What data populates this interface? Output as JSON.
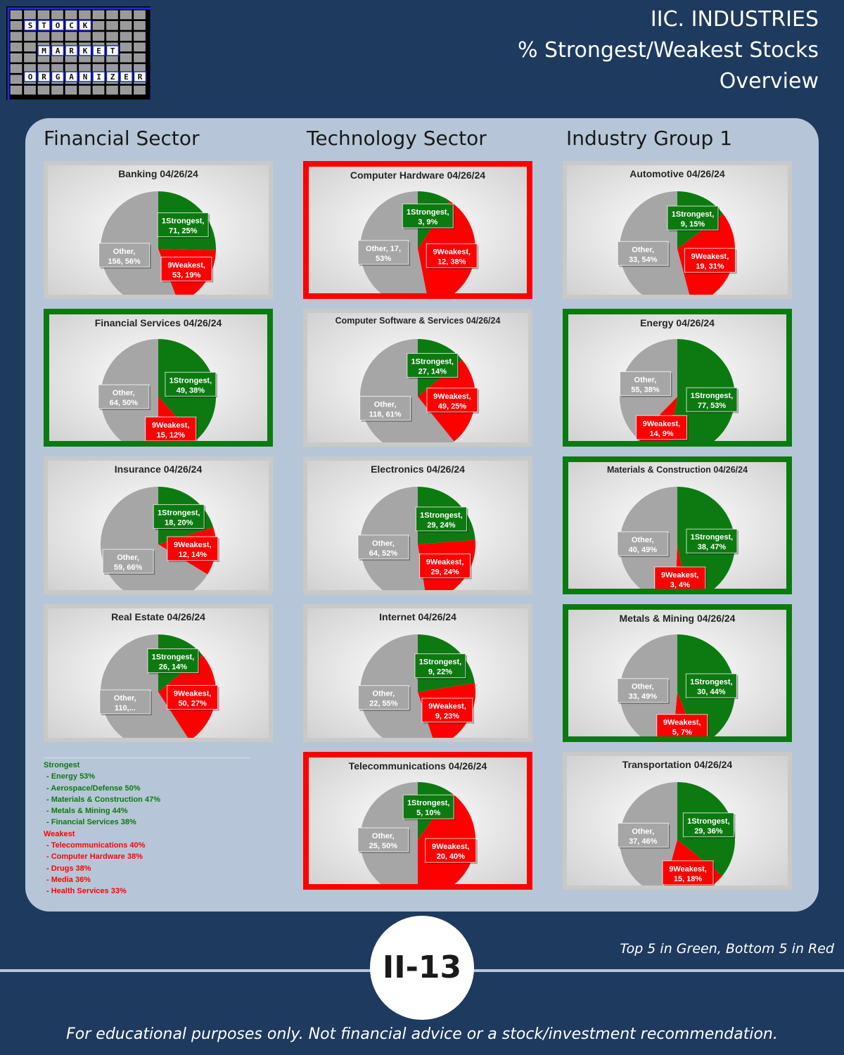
{
  "logo": {
    "rows": [
      [
        "S",
        "T",
        "O",
        "C",
        "K"
      ],
      [
        "M",
        "A",
        "R",
        "K",
        "E",
        "T"
      ],
      [
        "O",
        "R",
        "G",
        "A",
        "N",
        "I",
        "Z",
        "E",
        "R"
      ]
    ]
  },
  "header": {
    "line1": "IIC. INDUSTRIES",
    "line2": "% Strongest/Weakest Stocks",
    "line3": "Overview"
  },
  "sections": [
    "Financial Sector",
    "Technology Sector",
    "Industry Group 1"
  ],
  "colors": {
    "strongest": "#0c7a10",
    "weakest": "#ff0000",
    "other": "#a6a6a6"
  },
  "chart_data": [
    {
      "type": "pie",
      "title": "Banking 04/26/24",
      "column": 0,
      "row": 0,
      "highlight": "none",
      "slices": [
        {
          "name": "1Strongest",
          "line1": "1Strongest,",
          "line2": "71, 25%",
          "count": 71,
          "pct": 25
        },
        {
          "name": "9Weakest",
          "line1": "9Weakest,",
          "line2": "53, 19%",
          "count": 53,
          "pct": 19
        },
        {
          "name": "Other",
          "line1": "Other,",
          "line2": "156, 56%",
          "count": 156,
          "pct": 56
        }
      ]
    },
    {
      "type": "pie",
      "title": "Financial Services 04/26/24",
      "column": 0,
      "row": 1,
      "highlight": "green",
      "slices": [
        {
          "name": "1Strongest",
          "line1": "1Strongest,",
          "line2": "49, 38%",
          "count": 49,
          "pct": 38
        },
        {
          "name": "9Weakest",
          "line1": "9Weakest,",
          "line2": "15, 12%",
          "count": 15,
          "pct": 12
        },
        {
          "name": "Other",
          "line1": "Other,",
          "line2": "64, 50%",
          "count": 64,
          "pct": 50
        }
      ]
    },
    {
      "type": "pie",
      "title": "Insurance 04/26/24",
      "column": 0,
      "row": 2,
      "highlight": "none",
      "slices": [
        {
          "name": "1Strongest",
          "line1": "1Strongest,",
          "line2": "18, 20%",
          "count": 18,
          "pct": 20
        },
        {
          "name": "9Weakest",
          "line1": "9Weakest,",
          "line2": "12, 14%",
          "count": 12,
          "pct": 14
        },
        {
          "name": "Other",
          "line1": "Other,",
          "line2": "59, 66%",
          "count": 59,
          "pct": 66
        }
      ]
    },
    {
      "type": "pie",
      "title": "Real Estate 04/26/24",
      "column": 0,
      "row": 3,
      "highlight": "none",
      "slices": [
        {
          "name": "1Strongest",
          "line1": "1Strongest,",
          "line2": "26, 14%",
          "count": 26,
          "pct": 14
        },
        {
          "name": "9Weakest",
          "line1": "9Weakest,",
          "line2": "50, 27%",
          "count": 50,
          "pct": 27
        },
        {
          "name": "Other",
          "line1": "Other,",
          "line2": "110,...",
          "count": 110,
          "pct": 59
        }
      ]
    },
    {
      "type": "pie",
      "title": "Computer Hardware 04/26/24",
      "column": 1,
      "row": 0,
      "highlight": "red",
      "slices": [
        {
          "name": "1Strongest",
          "line1": "1Strongest,",
          "line2": "3, 9%",
          "count": 3,
          "pct": 9
        },
        {
          "name": "9Weakest",
          "line1": "9Weakest,",
          "line2": "12, 38%",
          "count": 12,
          "pct": 38
        },
        {
          "name": "Other",
          "line1": "Other, 17,",
          "line2": "53%",
          "count": 17,
          "pct": 53
        }
      ]
    },
    {
      "type": "pie",
      "title": "Computer Software & Services 04/26/24",
      "column": 1,
      "row": 1,
      "highlight": "none",
      "slices": [
        {
          "name": "1Strongest",
          "line1": "1Strongest,",
          "line2": "27, 14%",
          "count": 27,
          "pct": 14
        },
        {
          "name": "9Weakest",
          "line1": "9Weakest,",
          "line2": "49, 25%",
          "count": 49,
          "pct": 25
        },
        {
          "name": "Other",
          "line1": "Other,",
          "line2": "118, 61%",
          "count": 118,
          "pct": 61
        }
      ]
    },
    {
      "type": "pie",
      "title": "Electronics 04/26/24",
      "column": 1,
      "row": 2,
      "highlight": "none",
      "slices": [
        {
          "name": "1Strongest",
          "line1": "1Strongest,",
          "line2": "29, 24%",
          "count": 29,
          "pct": 24
        },
        {
          "name": "9Weakest",
          "line1": "9Weakest,",
          "line2": "29, 24%",
          "count": 29,
          "pct": 24
        },
        {
          "name": "Other",
          "line1": "Other,",
          "line2": "64, 52%",
          "count": 64,
          "pct": 52
        }
      ]
    },
    {
      "type": "pie",
      "title": "Internet 04/26/24",
      "column": 1,
      "row": 3,
      "highlight": "none",
      "slices": [
        {
          "name": "1Strongest",
          "line1": "1Strongest,",
          "line2": "9, 22%",
          "count": 9,
          "pct": 22
        },
        {
          "name": "9Weakest",
          "line1": "9Weakest,",
          "line2": "9, 23%",
          "count": 9,
          "pct": 23
        },
        {
          "name": "Other",
          "line1": "Other,",
          "line2": "22, 55%",
          "count": 22,
          "pct": 55
        }
      ]
    },
    {
      "type": "pie",
      "title": "Telecommunications 04/26/24",
      "column": 1,
      "row": 4,
      "highlight": "red",
      "slices": [
        {
          "name": "1Strongest",
          "line1": "1Strongest,",
          "line2": "5, 10%",
          "count": 5,
          "pct": 10
        },
        {
          "name": "9Weakest",
          "line1": "9Weakest,",
          "line2": "20, 40%",
          "count": 20,
          "pct": 40
        },
        {
          "name": "Other",
          "line1": "Other,",
          "line2": "25, 50%",
          "count": 25,
          "pct": 50
        }
      ]
    },
    {
      "type": "pie",
      "title": "Automotive 04/26/24",
      "column": 2,
      "row": 0,
      "highlight": "none",
      "slices": [
        {
          "name": "1Strongest",
          "line1": "1Strongest,",
          "line2": "9, 15%",
          "count": 9,
          "pct": 15
        },
        {
          "name": "9Weakest",
          "line1": "9Weakest,",
          "line2": "19, 31%",
          "count": 19,
          "pct": 31
        },
        {
          "name": "Other",
          "line1": "Other,",
          "line2": "33, 54%",
          "count": 33,
          "pct": 54
        }
      ]
    },
    {
      "type": "pie",
      "title": "Energy 04/26/24",
      "column": 2,
      "row": 1,
      "highlight": "green",
      "slices": [
        {
          "name": "1Strongest",
          "line1": "1Strongest,",
          "line2": "77, 53%",
          "count": 77,
          "pct": 53
        },
        {
          "name": "9Weakest",
          "line1": "9Weakest,",
          "line2": "14, 9%",
          "count": 14,
          "pct": 9
        },
        {
          "name": "Other",
          "line1": "Other,",
          "line2": "55, 38%",
          "count": 55,
          "pct": 38
        }
      ]
    },
    {
      "type": "pie",
      "title": "Materials & Construction 04/26/24",
      "column": 2,
      "row": 2,
      "highlight": "green",
      "slices": [
        {
          "name": "1Strongest",
          "line1": "1Strongest,",
          "line2": "38, 47%",
          "count": 38,
          "pct": 47
        },
        {
          "name": "9Weakest",
          "line1": "9Weakest,",
          "line2": "3, 4%",
          "count": 3,
          "pct": 4
        },
        {
          "name": "Other",
          "line1": "Other,",
          "line2": "40, 49%",
          "count": 40,
          "pct": 49
        }
      ]
    },
    {
      "type": "pie",
      "title": "Metals & Mining 04/26/24",
      "column": 2,
      "row": 3,
      "highlight": "green",
      "slices": [
        {
          "name": "1Strongest",
          "line1": "1Strongest,",
          "line2": "30, 44%",
          "count": 30,
          "pct": 44
        },
        {
          "name": "9Weakest",
          "line1": "9Weakest,",
          "line2": "5, 7%",
          "count": 5,
          "pct": 7
        },
        {
          "name": "Other",
          "line1": "Other,",
          "line2": "33, 49%",
          "count": 33,
          "pct": 49
        }
      ]
    },
    {
      "type": "pie",
      "title": "Transportation 04/26/24",
      "column": 2,
      "row": 4,
      "highlight": "none",
      "slices": [
        {
          "name": "1Strongest",
          "line1": "1Strongest,",
          "line2": "29, 36%",
          "count": 29,
          "pct": 36
        },
        {
          "name": "9Weakest",
          "line1": "9Weakest,",
          "line2": "15, 18%",
          "count": 15,
          "pct": 18
        },
        {
          "name": "Other",
          "line1": "Other,",
          "line2": "37, 46%",
          "count": 37,
          "pct": 46
        }
      ]
    }
  ],
  "legend": {
    "strongest_heading": "Strongest",
    "strongest": [
      " - Energy 53%",
      " - Aerospace/Defense 50%",
      " - Materials & Construction 47%",
      " - Metals & Mining 44%",
      " - Financial Services 38%"
    ],
    "weakest_heading": "Weakest",
    "weakest": [
      " - Telecommunications 40%",
      " - Computer Hardware 38%",
      " - Drugs 38%",
      " - Media 36%",
      " - Health Services 33%"
    ]
  },
  "footer": {
    "page_number": "II-13",
    "note": "Top 5 in Green, Bottom 5 in Red",
    "disclaimer": "For educational purposes only. Not financial advice or a stock/investment recommendation."
  }
}
